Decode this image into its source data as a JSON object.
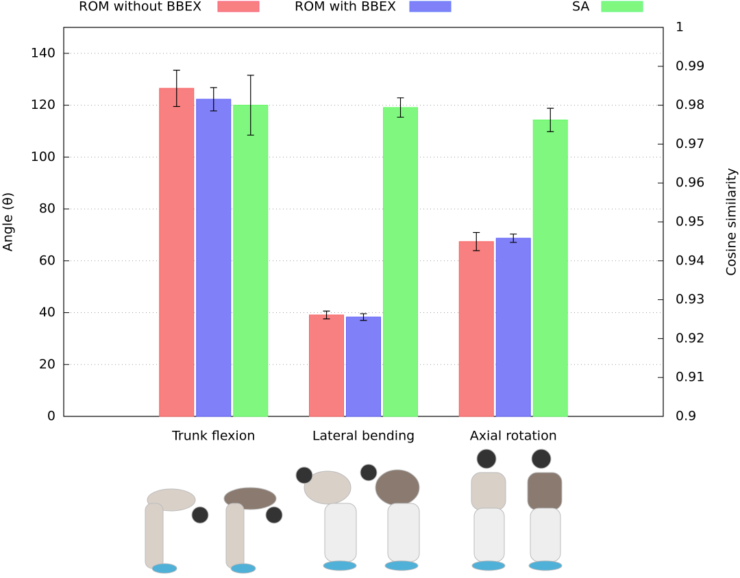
{
  "chart_data": {
    "type": "bar",
    "categories": [
      "Trunk flexion",
      "Lateral bending",
      "Axial rotation"
    ],
    "ylabel": "Angle (θ)",
    "y2label": "Cosine similarity",
    "ylim": [
      0,
      150
    ],
    "yticks": [
      0,
      20,
      40,
      60,
      80,
      100,
      120,
      140
    ],
    "y2lim": [
      0.9,
      1.0
    ],
    "y2ticks": [
      0.9,
      0.91,
      0.92,
      0.93,
      0.94,
      0.95,
      0.96,
      0.97,
      0.98,
      0.99,
      1
    ],
    "grid": true,
    "legend": "top",
    "series": [
      {
        "name": "ROM without BBEX",
        "color": "#f88080",
        "values": [
          126.5,
          39.1,
          67.4
        ],
        "errors": [
          7,
          1.5,
          3.5
        ]
      },
      {
        "name": "ROM with BBEX",
        "color": "#8080f8",
        "values": [
          122.3,
          38.3,
          68.7
        ],
        "errors": [
          4.5,
          1.3,
          1.6
        ]
      },
      {
        "name": "SA",
        "color": "#80f880",
        "axis": "y2",
        "values": [
          0.98,
          0.9794,
          0.9762
        ],
        "errors": [
          0.0077,
          0.0025,
          0.003
        ]
      }
    ]
  }
}
